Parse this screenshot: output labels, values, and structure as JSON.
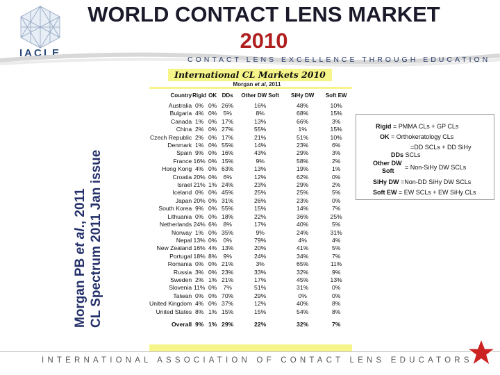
{
  "header": {
    "title_line1": "WORLD CONTACT LENS MARKET",
    "title_line2": "2010",
    "logo_text": "IACLE",
    "tagline": "CONTACT LENS EXCELLENCE THROUGH EDUCATION"
  },
  "side_citation": {
    "line1_prefix": "Morgan PB ",
    "line1_italic": "et al",
    "line1_suffix": "., 2011",
    "line2": "CL Spectrum 2011 Jan issue"
  },
  "table_title": "International CL Markets 2010",
  "table_citation": {
    "prefix": "Morgan ",
    "italic": "et al",
    "suffix": ", 2011"
  },
  "columns": [
    "Country",
    "Rigid",
    "OK",
    "DDs",
    "Other DW Soft",
    "SiHy DW",
    "Soft EW"
  ],
  "rows": [
    [
      "Australia",
      "0%",
      "0%",
      "26%",
      "16%",
      "48%",
      "10%"
    ],
    [
      "Bulgaria",
      "4%",
      "0%",
      "5%",
      "8%",
      "68%",
      "15%"
    ],
    [
      "Canada",
      "1%",
      "0%",
      "17%",
      "13%",
      "66%",
      "3%"
    ],
    [
      "China",
      "2%",
      "0%",
      "27%",
      "55%",
      "1%",
      "15%"
    ],
    [
      "Czech Republic",
      "2%",
      "0%",
      "17%",
      "21%",
      "51%",
      "10%"
    ],
    [
      "Denmark",
      "1%",
      "0%",
      "55%",
      "14%",
      "23%",
      "6%"
    ],
    [
      "Spain",
      "9%",
      "0%",
      "16%",
      "43%",
      "29%",
      "3%"
    ],
    [
      "France",
      "16%",
      "0%",
      "15%",
      "9%",
      "58%",
      "2%"
    ],
    [
      "Hong Kong",
      "4%",
      "0%",
      "63%",
      "13%",
      "19%",
      "1%"
    ],
    [
      "Croatia",
      "20%",
      "0%",
      "6%",
      "12%",
      "62%",
      "0%"
    ],
    [
      "Israel",
      "21%",
      "1%",
      "24%",
      "23%",
      "29%",
      "2%"
    ],
    [
      "Iceland",
      "0%",
      "0%",
      "45%",
      "25%",
      "25%",
      "5%"
    ],
    [
      "Japan",
      "20%",
      "0%",
      "31%",
      "26%",
      "23%",
      "0%"
    ],
    [
      "South Korea",
      "9%",
      "0%",
      "55%",
      "15%",
      "14%",
      "7%"
    ],
    [
      "Lithuania",
      "0%",
      "0%",
      "18%",
      "22%",
      "36%",
      "25%"
    ],
    [
      "Netherlands",
      "24%",
      "6%",
      "8%",
      "17%",
      "40%",
      "5%"
    ],
    [
      "Norway",
      "1%",
      "0%",
      "35%",
      "9%",
      "24%",
      "31%"
    ],
    [
      "Nepal",
      "13%",
      "0%",
      "0%",
      "79%",
      "4%",
      "4%"
    ],
    [
      "New Zealand",
      "16%",
      "4%",
      "13%",
      "20%",
      "41%",
      "5%"
    ],
    [
      "Portugal",
      "18%",
      "8%",
      "9%",
      "24%",
      "34%",
      "7%"
    ],
    [
      "Romania",
      "0%",
      "0%",
      "21%",
      "3%",
      "65%",
      "11%"
    ],
    [
      "Russia",
      "3%",
      "0%",
      "23%",
      "33%",
      "32%",
      "9%"
    ],
    [
      "Sweden",
      "2%",
      "1%",
      "21%",
      "17%",
      "45%",
      "13%"
    ],
    [
      "Slovenia",
      "11%",
      "0%",
      "7%",
      "51%",
      "31%",
      "0%"
    ],
    [
      "Taiwan",
      "0%",
      "0%",
      "70%",
      "29%",
      "0%",
      "0%"
    ],
    [
      "United Kingdom",
      "4%",
      "0%",
      "37%",
      "12%",
      "40%",
      "8%"
    ],
    [
      "United States",
      "8%",
      "1%",
      "15%",
      "15%",
      "54%",
      "8%"
    ]
  ],
  "overall": [
    "Overall",
    "9%",
    "1%",
    "29%",
    "22%",
    "32%",
    "7%"
  ],
  "legend": {
    "rigid_term": "Rigid",
    "rigid_def": " = PMMA CLs + GP CLs",
    "ok_term": "OK",
    "ok_def": " = Orthokeratology CLs",
    "dds_def": "=DD SCLs + DD SiHy",
    "dds_term": "DDs",
    "dds_tail": " SCLs",
    "other_term1": "Other DW",
    "other_term2": "Soft",
    "other_def": "= Non-SiHy DW SCLs",
    "sihy_term": "SiHy DW",
    "sihy_def": " =Non-DD SiHy DW SCLs",
    "softew_term": "Soft EW",
    "softew_def": " = EW SCLs + EW SiHy CLs"
  },
  "footer_text": "INTERNATIONAL ASSOCIATION OF CONTACT LENS EDUCATORS",
  "colors": {
    "title": "#1a1a2a",
    "title_year": "#b01e1e",
    "table_band": "#f5f58a",
    "side_text": "#24306a",
    "star": "#cc2222"
  }
}
